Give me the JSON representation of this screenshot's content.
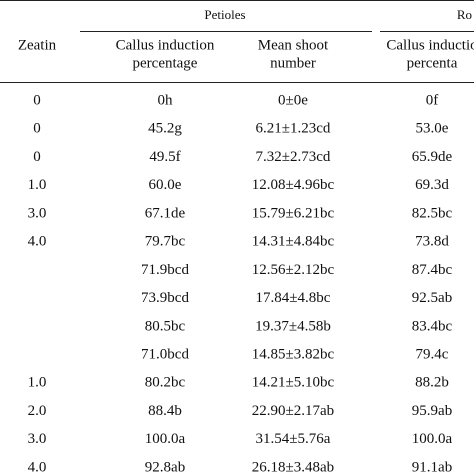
{
  "header": {
    "groups": [
      "Petioles",
      "Ro"
    ],
    "columns": [
      [
        "Zeatin"
      ],
      [
        "Callus induction",
        "percentage"
      ],
      [
        "Mean shoot",
        "number"
      ],
      [
        "Callus inductio",
        "percenta"
      ]
    ]
  },
  "table": {
    "rows": [
      [
        "0",
        "0h",
        "0±0e",
        "0f"
      ],
      [
        "0",
        "45.2g",
        "6.21±1.23cd",
        "53.0e"
      ],
      [
        "0",
        "49.5f",
        "7.32±2.73cd",
        "65.9de"
      ],
      [
        "1.0",
        "60.0e",
        "12.08±4.96bc",
        "69.3d"
      ],
      [
        "3.0",
        "67.1de",
        "15.79±6.21bc",
        "82.5bc"
      ],
      [
        "4.0",
        "79.7bc",
        "14.31±4.84bc",
        "73.8d"
      ],
      [
        null,
        "71.9bcd",
        "12.56±2.12bc",
        "87.4bc"
      ],
      [
        null,
        "73.9bcd",
        "17.84±4.8bc",
        "92.5ab"
      ],
      [
        null,
        "80.5bc",
        "19.37±4.58b",
        "83.4bc"
      ],
      [
        null,
        "71.0bcd",
        "14.85±3.82bc",
        "79.4c"
      ],
      [
        "1.0",
        "80.2bc",
        "14.21±5.10bc",
        "88.2b"
      ],
      [
        "2.0",
        "88.4b",
        "22.90±2.17ab",
        "95.9ab"
      ],
      [
        "3.0",
        "100.0a",
        "31.54±5.76a",
        "100.0a"
      ],
      [
        "4.0",
        "92.8ab",
        "26.18±3.48ab",
        "91.1ab"
      ]
    ]
  }
}
